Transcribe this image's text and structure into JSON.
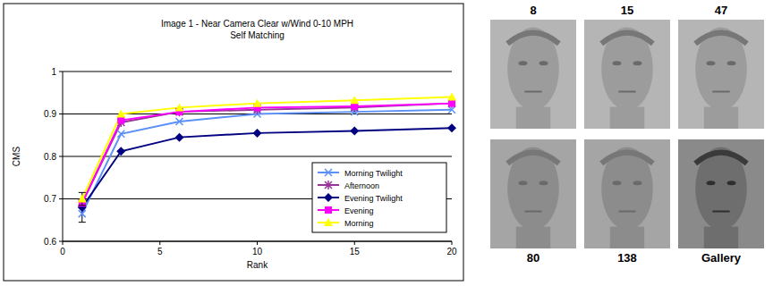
{
  "chart_data": {
    "type": "line",
    "title": "Image 1 - Near Camera Clear w/Wind 0-10 MPH",
    "subtitle": "Self Matching",
    "x_label": "Rank",
    "y_label": "CMS",
    "x": [
      1,
      3,
      6,
      10,
      15,
      20
    ],
    "series": [
      {
        "name": "Morning Twilight",
        "color": "#5b8ff9",
        "marker": "x",
        "values": [
          0.665,
          0.853,
          0.882,
          0.9,
          0.905,
          0.91
        ],
        "errors": [
          0.02,
          null,
          null,
          null,
          null,
          null
        ]
      },
      {
        "name": "Afternoon",
        "color": "#993399",
        "marker": "asterisk",
        "values": [
          0.69,
          0.88,
          0.905,
          0.91,
          0.915,
          0.925
        ],
        "errors": [
          null,
          null,
          null,
          null,
          null,
          null
        ]
      },
      {
        "name": "Evening Twilight",
        "color": "#000080",
        "marker": "diamond",
        "values": [
          0.68,
          0.812,
          0.845,
          0.855,
          0.86,
          0.867
        ],
        "errors": [
          null,
          null,
          null,
          null,
          null,
          null
        ]
      },
      {
        "name": "Evening",
        "color": "#ff00ff",
        "marker": "square",
        "values": [
          0.69,
          0.885,
          0.905,
          0.915,
          0.918,
          0.925
        ],
        "errors": [
          null,
          null,
          null,
          null,
          null,
          null
        ]
      },
      {
        "name": "Morning",
        "color": "#ffff00",
        "marker": "triangle",
        "values": [
          0.7,
          0.9,
          0.915,
          0.925,
          0.932,
          0.94
        ],
        "errors": [
          0.015,
          null,
          null,
          null,
          null,
          null
        ]
      }
    ],
    "xlim": [
      0,
      20
    ],
    "xticks": [
      0,
      5,
      10,
      15,
      20
    ],
    "ylim": [
      0.6,
      1
    ],
    "yticks": [
      0.6,
      0.7,
      0.8,
      0.9,
      1
    ],
    "grid": true,
    "legend": "lower right"
  },
  "image_panel": {
    "labels": [
      "8",
      "15",
      "47",
      "80",
      "138",
      "Gallery"
    ]
  }
}
